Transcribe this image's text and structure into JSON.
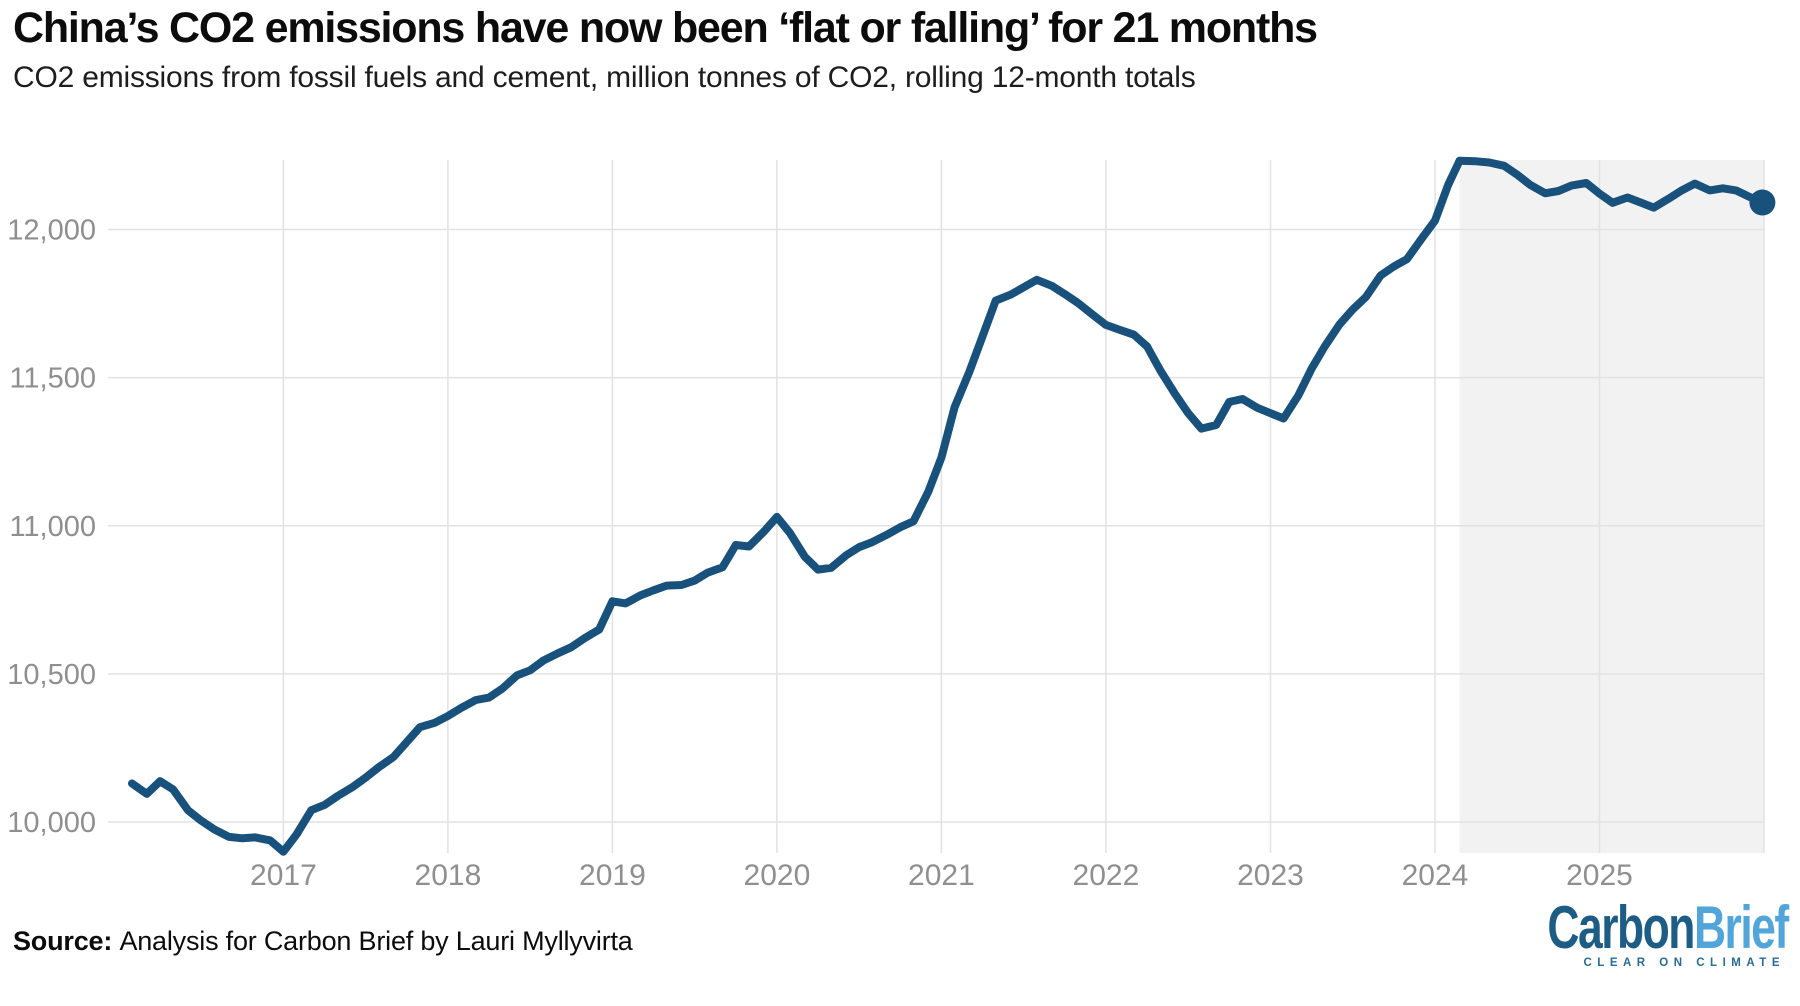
{
  "header": {
    "title": "China’s CO2 emissions have now been ‘flat or falling’ for 21 months",
    "subtitle": "CO2 emissions from fossil fuels and cement, million tonnes of CO2, rolling 12-month totals"
  },
  "footer": {
    "source_label": "Source:",
    "source_text": "Analysis for Carbon Brief by Lauri Myllyvirta",
    "logo": {
      "part1": "Carbon",
      "part2": "Brief",
      "tagline": "CLEAR ON CLIMATE"
    }
  },
  "colors": {
    "line": "#18517b",
    "end_dot": "#18517b",
    "gridline": "#e2e2e2",
    "shaded_band": "#f2f2f2",
    "axis_label": "#8f8f8f",
    "logo_dark_blue": "#1d5d85",
    "logo_light_blue": "#52a5d8"
  },
  "chart_data": {
    "type": "line",
    "title": "China’s CO2 emissions have now been ‘flat or falling’ for 21 months",
    "subtitle": "CO2 emissions from fossil fuels and cement, million tonnes of CO2, rolling 12-month totals",
    "xlabel": "",
    "ylabel": "million tonnes of CO2 (rolling 12-month totals)",
    "grid": true,
    "legend": false,
    "x_domain": [
      2015.934,
      2026.0
    ],
    "y_domain": [
      9895.5,
      12234.5
    ],
    "x_tick_years": [
      2017,
      2018,
      2019,
      2020,
      2021,
      2022,
      2023,
      2024,
      2025
    ],
    "x_gridline_years": [
      2017,
      2018,
      2019,
      2020,
      2021,
      2022,
      2023,
      2024,
      2025,
      2026
    ],
    "y_ticks": [
      {
        "value": 10000,
        "label": "10,000"
      },
      {
        "value": 10500,
        "label": "10,500"
      },
      {
        "value": 11000,
        "label": "11,000"
      },
      {
        "value": 11500,
        "label": "11,500"
      },
      {
        "value": 12000,
        "label": "12,000"
      }
    ],
    "shaded_region": {
      "x_start": 2024.15,
      "x_end": 2026.0,
      "meaning": "21-month flat-or-falling period"
    },
    "end_marker": {
      "radius": 13
    },
    "series": [
      {
        "name": "China CO2 emissions, rolling 12-month total (MtCO2)",
        "x": [
          2016.08,
          2016.17,
          2016.25,
          2016.33,
          2016.42,
          2016.5,
          2016.58,
          2016.67,
          2016.75,
          2016.83,
          2016.92,
          2017.0,
          2017.08,
          2017.17,
          2017.25,
          2017.33,
          2017.42,
          2017.5,
          2017.58,
          2017.67,
          2017.75,
          2017.83,
          2017.92,
          2018.0,
          2018.08,
          2018.17,
          2018.25,
          2018.33,
          2018.42,
          2018.5,
          2018.58,
          2018.67,
          2018.75,
          2018.83,
          2018.92,
          2019.0,
          2019.08,
          2019.17,
          2019.25,
          2019.33,
          2019.42,
          2019.5,
          2019.58,
          2019.67,
          2019.75,
          2019.83,
          2019.92,
          2020.0,
          2020.08,
          2020.17,
          2020.25,
          2020.33,
          2020.42,
          2020.5,
          2020.58,
          2020.67,
          2020.75,
          2020.83,
          2020.92,
          2021.0,
          2021.08,
          2021.17,
          2021.25,
          2021.33,
          2021.42,
          2021.5,
          2021.58,
          2021.67,
          2021.75,
          2021.83,
          2021.92,
          2022.0,
          2022.08,
          2022.17,
          2022.25,
          2022.33,
          2022.42,
          2022.5,
          2022.58,
          2022.67,
          2022.75,
          2022.83,
          2022.92,
          2023.0,
          2023.08,
          2023.17,
          2023.25,
          2023.33,
          2023.42,
          2023.5,
          2023.58,
          2023.67,
          2023.75,
          2023.83,
          2023.92,
          2024.0,
          2024.08,
          2024.15,
          2024.25,
          2024.33,
          2024.42,
          2024.5,
          2024.58,
          2024.67,
          2024.75,
          2024.83,
          2024.92,
          2025.0,
          2025.08,
          2025.17,
          2025.25,
          2025.33,
          2025.42,
          2025.5,
          2025.58,
          2025.67,
          2025.75,
          2025.83,
          2025.92,
          2025.99
        ],
        "values": [
          10130,
          10095,
          10138,
          10110,
          10040,
          10005,
          9975,
          9950,
          9945,
          9948,
          9938,
          9900,
          9958,
          10040,
          10058,
          10088,
          10118,
          10150,
          10185,
          10220,
          10270,
          10320,
          10335,
          10358,
          10385,
          10412,
          10420,
          10450,
          10495,
          10512,
          10545,
          10570,
          10590,
          10620,
          10650,
          10745,
          10738,
          10765,
          10782,
          10798,
          10800,
          10815,
          10842,
          10860,
          10935,
          10930,
          10980,
          11030,
          10975,
          10895,
          10852,
          10858,
          10900,
          10928,
          10945,
          10970,
          10995,
          11015,
          11115,
          11230,
          11400,
          11520,
          11640,
          11760,
          11780,
          11805,
          11830,
          11810,
          11782,
          11752,
          11712,
          11678,
          11662,
          11645,
          11605,
          11525,
          11445,
          11380,
          11328,
          11340,
          11418,
          11428,
          11398,
          11380,
          11362,
          11440,
          11530,
          11605,
          11680,
          11730,
          11772,
          11845,
          11875,
          11900,
          11970,
          12030,
          12150,
          12232,
          12230,
          12226,
          12215,
          12185,
          12150,
          12122,
          12130,
          12148,
          12157,
          12121,
          12090,
          12108,
          12091,
          12074,
          12104,
          12132,
          12155,
          12132,
          12139,
          12132,
          12108,
          12091
        ]
      }
    ]
  }
}
